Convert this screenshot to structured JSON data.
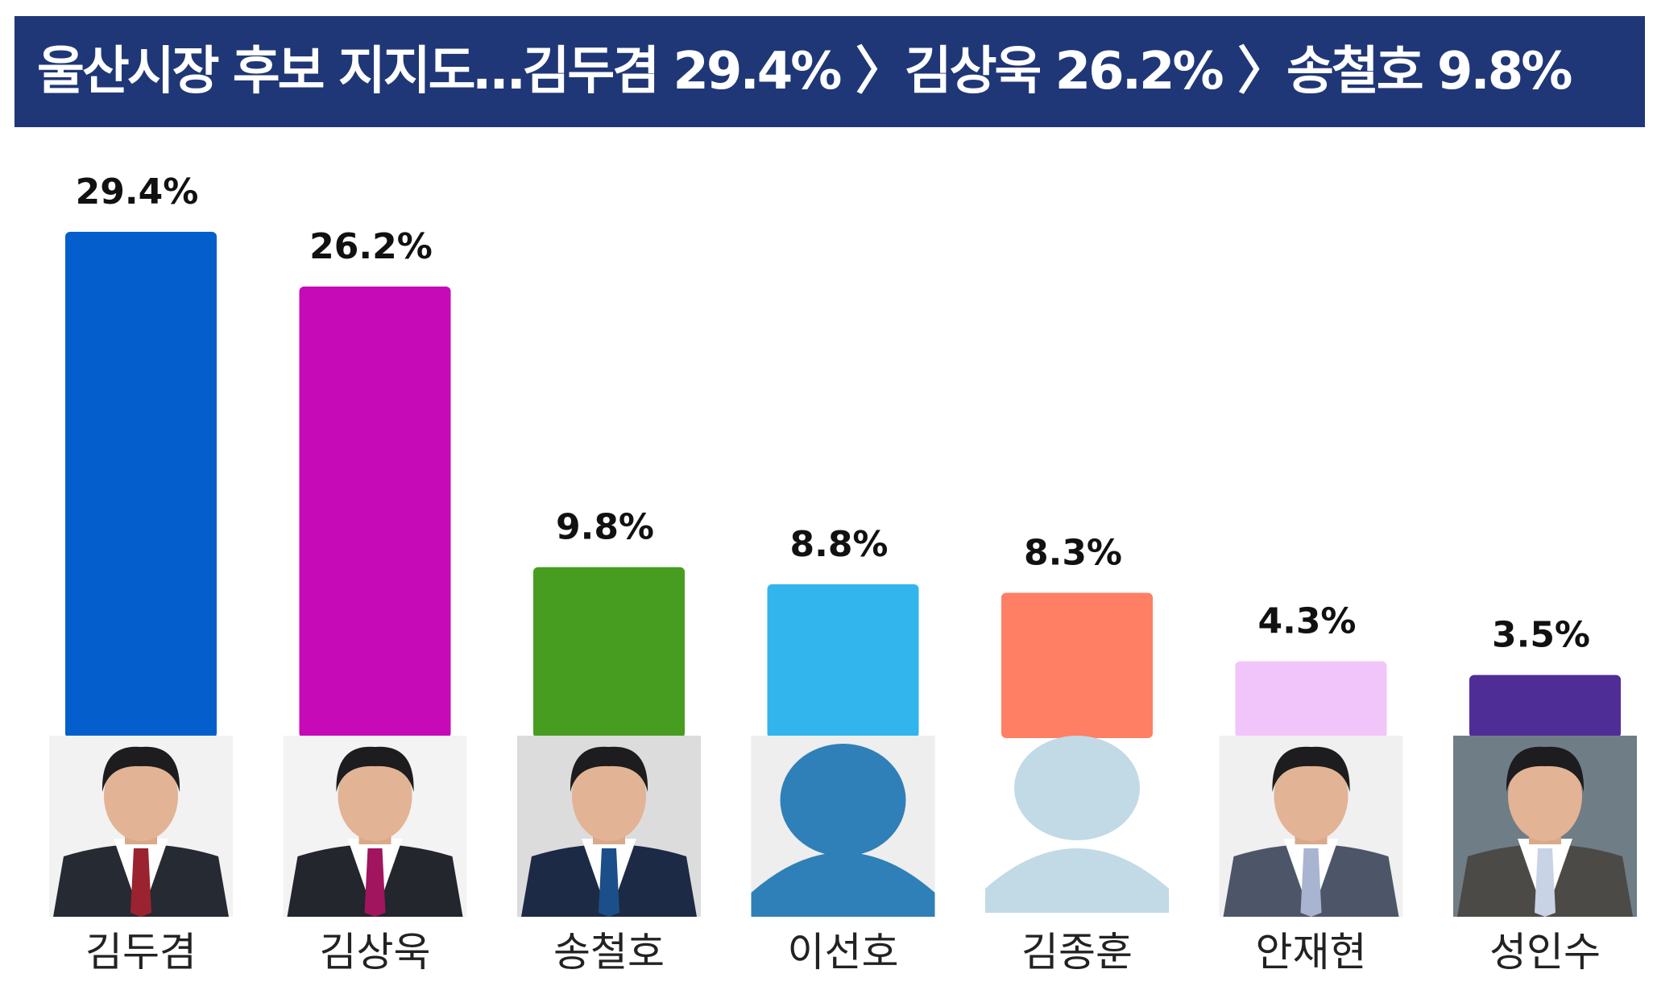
{
  "title": "울산시장 후보 지지도…김두겸 29.4% 〉김상욱 26.2% 〉송철호 9.8%",
  "chart_data": {
    "type": "bar",
    "title": "울산시장 후보 지지도…김두겸 29.4% 〉김상욱 26.2% 〉송철호 9.8%",
    "xlabel": "",
    "ylabel": "",
    "ylim": [
      0,
      29.4
    ],
    "grid": false,
    "legend": "none",
    "categories": [
      "김두겸",
      "김상욱",
      "송철호",
      "이선호",
      "김종훈",
      "안재현",
      "성인수"
    ],
    "values": [
      29.4,
      26.2,
      9.8,
      8.8,
      8.3,
      4.3,
      3.5
    ],
    "value_labels": [
      "29.4%",
      "26.2%",
      "9.8%",
      "8.8%",
      "8.3%",
      "4.3%",
      "3.5%"
    ],
    "colors": [
      "#045fcc",
      "#c70ab7",
      "#479d1f",
      "#31b5ec",
      "#fe7f64",
      "#f1c5f9",
      "#4f2d96"
    ],
    "photos": [
      "photo",
      "photo",
      "photo",
      "placeholder-dark",
      "placeholder-light",
      "photo",
      "photo"
    ]
  }
}
